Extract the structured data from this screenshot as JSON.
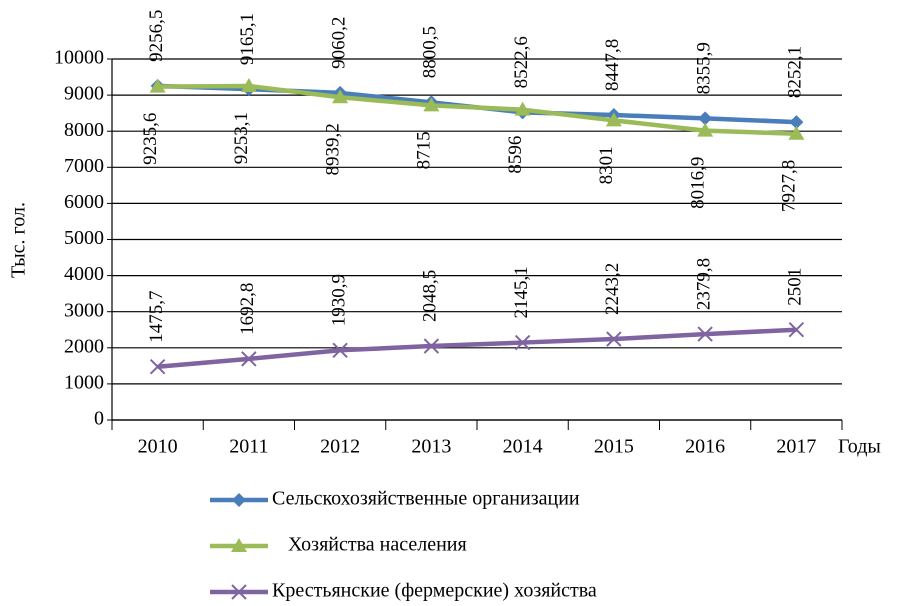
{
  "chart_data": {
    "type": "line",
    "y_label": "Тыс. гол.",
    "x_label": "Годы",
    "categories": [
      "2010",
      "2011",
      "2012",
      "2013",
      "2014",
      "2015",
      "2016",
      "2017"
    ],
    "series": [
      {
        "name": "Сельскохозяйственные организации",
        "color": "#4a7ebb",
        "marker": "diamond",
        "values": [
          9256.5,
          9165.1,
          9060.2,
          8800.5,
          8522.6,
          8447.8,
          8355.9,
          8252.1
        ],
        "value_labels": [
          "9256,5",
          "9165,1",
          "9060,2",
          "8800,5",
          "8522,6",
          "8447,8",
          "8355,9",
          "8252,1"
        ],
        "label_position": "above"
      },
      {
        "name": "Хозяйства населения",
        "color": "#9bbb59",
        "marker": "triangle",
        "values": [
          9235.6,
          9253.1,
          8939.2,
          8715,
          8596,
          8301,
          8016.9,
          7927.8
        ],
        "value_labels": [
          "9235,6",
          "9253,1",
          "8939,2",
          "8715",
          "8596",
          "8301",
          "8016,9",
          "7927,8"
        ],
        "label_position": "below"
      },
      {
        "name": "Крестьянские (фермерские) хозяйства",
        "color": "#8064a2",
        "marker": "x",
        "values": [
          1475.7,
          1692.8,
          1930.9,
          2048.5,
          2145.1,
          2243.2,
          2379.8,
          2501
        ],
        "value_labels": [
          "1475,7",
          "1692,8",
          "1930,9",
          "2048,5",
          "2145,1",
          "2243,2",
          "2379,8",
          "2501"
        ],
        "label_position": "above"
      }
    ],
    "ylim": [
      0,
      10000
    ],
    "yticks": [
      0,
      1000,
      2000,
      3000,
      4000,
      5000,
      6000,
      7000,
      8000,
      9000,
      10000
    ],
    "grid": true,
    "legend": "bottom"
  }
}
